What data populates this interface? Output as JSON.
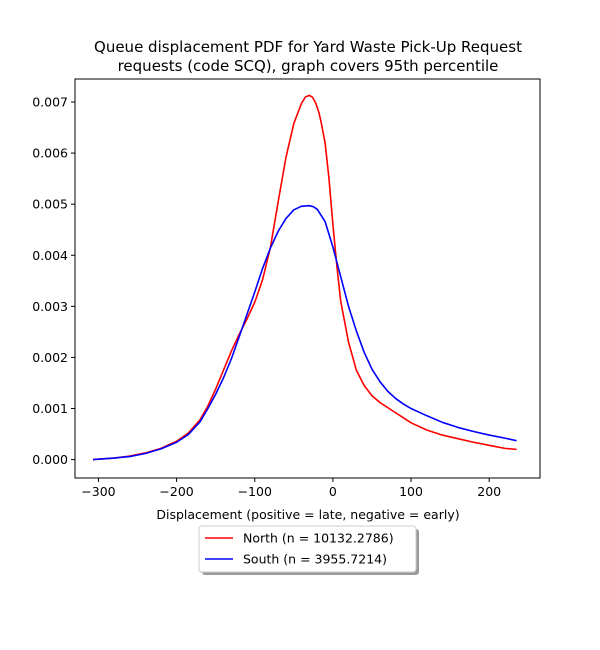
{
  "chart_data": {
    "type": "line",
    "title_line1": "Queue displacement PDF for Yard Waste Pick-Up Request",
    "title_line2": "requests (code SCQ), graph covers 95th percentile",
    "xlabel": "Displacement (positive = late, negative = early)",
    "ylabel": "",
    "xlim": [
      -330,
      265
    ],
    "ylim": [
      -0.00036,
      0.00745
    ],
    "xticks": [
      -300,
      -200,
      -100,
      0,
      100,
      200
    ],
    "xtick_labels": [
      "−300",
      "−200",
      "−100",
      "0",
      "100",
      "200"
    ],
    "yticks": [
      0.0,
      0.001,
      0.002,
      0.003,
      0.004,
      0.005,
      0.006,
      0.007
    ],
    "ytick_labels": [
      "0.000",
      "0.001",
      "0.002",
      "0.003",
      "0.004",
      "0.005",
      "0.006",
      "0.007"
    ],
    "grid": false,
    "legend_position": "below",
    "series": [
      {
        "name": "North (n = 10132.2786)",
        "color": "#ff0000",
        "x": [
          -307,
          -280,
          -260,
          -240,
          -220,
          -200,
          -185,
          -170,
          -160,
          -150,
          -140,
          -130,
          -120,
          -110,
          -100,
          -90,
          -80,
          -70,
          -60,
          -50,
          -40,
          -35,
          -30,
          -26,
          -22,
          -18,
          -15,
          -10,
          -5,
          0,
          5,
          10,
          20,
          30,
          40,
          50,
          60,
          70,
          80,
          90,
          100,
          120,
          140,
          160,
          180,
          200,
          220,
          235
        ],
        "y": [
          0.0,
          3e-05,
          7e-05,
          0.00013,
          0.00022,
          0.00036,
          0.00052,
          0.00078,
          0.00105,
          0.00138,
          0.00175,
          0.00212,
          0.00245,
          0.00275,
          0.00308,
          0.00352,
          0.00415,
          0.00505,
          0.00592,
          0.00658,
          0.00698,
          0.0071,
          0.00713,
          0.00709,
          0.00698,
          0.0068,
          0.0066,
          0.0062,
          0.0055,
          0.0046,
          0.0038,
          0.0031,
          0.0023,
          0.00175,
          0.00145,
          0.00125,
          0.00112,
          0.00102,
          0.00092,
          0.00082,
          0.00072,
          0.00058,
          0.00048,
          0.00041,
          0.00034,
          0.00028,
          0.00022,
          0.0002
        ]
      },
      {
        "name": "South (n = 3955.7214)",
        "color": "#0000ff",
        "x": [
          -307,
          -280,
          -260,
          -240,
          -220,
          -200,
          -185,
          -170,
          -160,
          -150,
          -140,
          -130,
          -120,
          -110,
          -100,
          -90,
          -80,
          -70,
          -60,
          -50,
          -40,
          -30,
          -25,
          -20,
          -10,
          0,
          10,
          20,
          30,
          40,
          50,
          60,
          70,
          80,
          90,
          100,
          120,
          140,
          160,
          180,
          200,
          220,
          235
        ],
        "y": [
          0.0,
          3e-05,
          6e-05,
          0.00012,
          0.00021,
          0.00034,
          0.00049,
          0.00074,
          0.001,
          0.00128,
          0.0016,
          0.00197,
          0.0024,
          0.00284,
          0.00328,
          0.00374,
          0.00414,
          0.00447,
          0.00472,
          0.00489,
          0.00496,
          0.00497,
          0.00495,
          0.0049,
          0.00466,
          0.00416,
          0.00358,
          0.003,
          0.00252,
          0.0021,
          0.00177,
          0.00153,
          0.00134,
          0.0012,
          0.00109,
          0.001,
          0.00086,
          0.00073,
          0.00063,
          0.00055,
          0.00048,
          0.00042,
          0.00037
        ]
      }
    ]
  }
}
